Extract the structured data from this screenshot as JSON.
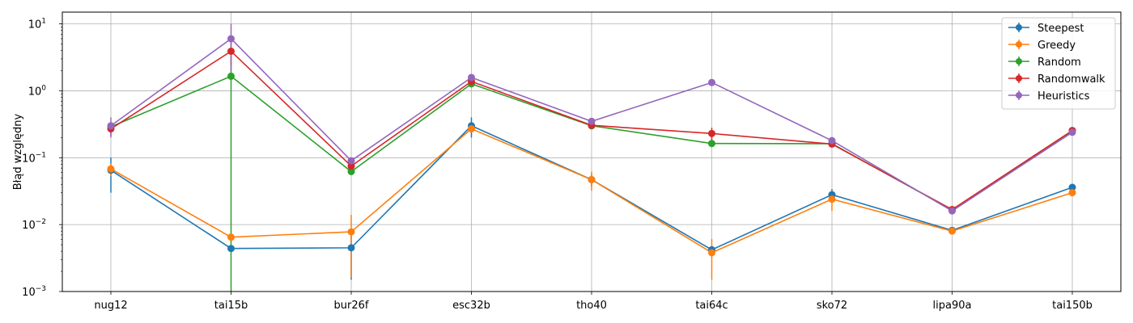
{
  "chart_data": {
    "type": "line",
    "title": "",
    "xlabel": "",
    "ylabel": "Błąd względny",
    "yscale": "log",
    "ylim": [
      0.001,
      15
    ],
    "y_ticks": [
      {
        "value": 0.001,
        "base": "10",
        "exp": "−3"
      },
      {
        "value": 0.01,
        "base": "10",
        "exp": "−2"
      },
      {
        "value": 0.1,
        "base": "10",
        "exp": "−1"
      },
      {
        "value": 1,
        "base": "10",
        "exp": "0"
      },
      {
        "value": 10,
        "base": "10",
        "exp": "1"
      }
    ],
    "grid": true,
    "error_bars": true,
    "legend_position": "top-right",
    "categories": [
      "nug12",
      "tai15b",
      "bur26f",
      "esc32b",
      "tho40",
      "tai64c",
      "sko72",
      "lipa90a",
      "tai150b"
    ],
    "series": [
      {
        "name": "Steepest",
        "color": "#1f77b4",
        "values": [
          0.065,
          0.0044,
          0.0045,
          0.3,
          0.047,
          0.0042,
          0.028,
          0.0082,
          0.036
        ],
        "errors": [
          0.035,
          0.0001,
          0.003,
          0.1,
          0.01,
          0.0007,
          0.006,
          0.0004,
          0.004
        ]
      },
      {
        "name": "Greedy",
        "color": "#ff7f0e",
        "values": [
          0.068,
          0.0065,
          0.0078,
          0.27,
          0.047,
          0.0038,
          0.024,
          0.008,
          0.03
        ],
        "errors": [
          0.015,
          0.0004,
          0.0062,
          0.03,
          0.015,
          0.0023,
          0.008,
          0.0004,
          0.003
        ]
      },
      {
        "name": "Random",
        "color": "#2ca02c",
        "values": [
          0.29,
          1.65,
          0.062,
          1.27,
          0.3,
          0.163,
          0.162,
          0.0165,
          0.25
        ],
        "errors": [
          0.04,
          1.649,
          0.006,
          0.05,
          0.02,
          0.008,
          0.006,
          0.0005,
          0.01
        ]
      },
      {
        "name": "Randomwalk",
        "color": "#d62728",
        "values": [
          0.27,
          3.9,
          0.075,
          1.38,
          0.305,
          0.23,
          0.16,
          0.0168,
          0.255
        ],
        "errors": [
          0.06,
          1.5,
          0.01,
          0.08,
          0.02,
          0.05,
          0.01,
          0.0006,
          0.02
        ]
      },
      {
        "name": "Heuristics",
        "color": "#9467bd",
        "values": [
          0.3,
          6.0,
          0.09,
          1.58,
          0.35,
          1.33,
          0.18,
          0.016,
          0.24
        ],
        "errors": [
          0.1,
          4.0,
          0.01,
          0.1,
          0.02,
          0.05,
          0.01,
          0.0005,
          0.015
        ]
      }
    ]
  }
}
